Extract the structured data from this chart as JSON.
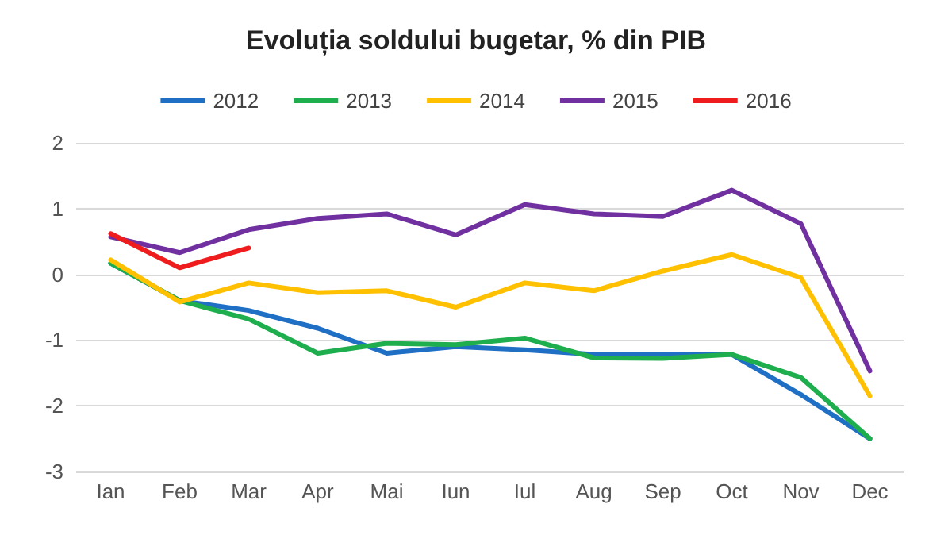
{
  "chart_data": {
    "type": "line",
    "title": "Evoluția soldului bugetar, % din PIB",
    "categories": [
      "Ian",
      "Feb",
      "Mar",
      "Apr",
      "Mai",
      "Iun",
      "Iul",
      "Aug",
      "Sep",
      "Oct",
      "Nov",
      "Dec"
    ],
    "series": [
      {
        "name": "2012",
        "color": "#1f6fc5",
        "values": [
          0.17,
          -0.4,
          -0.55,
          -0.82,
          -1.2,
          -1.1,
          -1.15,
          -1.22,
          -1.22,
          -1.22,
          -1.83,
          -2.5
        ]
      },
      {
        "name": "2013",
        "color": "#1fae4e",
        "values": [
          0.17,
          -0.4,
          -0.68,
          -1.2,
          -1.05,
          -1.07,
          -0.97,
          -1.27,
          -1.28,
          -1.22,
          -1.57,
          -2.5
        ]
      },
      {
        "name": "2014",
        "color": "#ffc000",
        "values": [
          0.22,
          -0.42,
          -0.13,
          -0.28,
          -0.25,
          -0.5,
          -0.13,
          -0.25,
          0.05,
          0.3,
          -0.05,
          -1.85
        ]
      },
      {
        "name": "2015",
        "color": "#7030a0",
        "values": [
          0.57,
          0.33,
          0.68,
          0.85,
          0.92,
          0.6,
          1.06,
          0.92,
          0.88,
          1.28,
          0.77,
          -1.47
        ]
      },
      {
        "name": "2016",
        "color": "#ee1c1c",
        "values": [
          0.62,
          0.1,
          0.4,
          null,
          null,
          null,
          null,
          null,
          null,
          null,
          null,
          null
        ]
      }
    ],
    "ylim": [
      -3,
      2
    ],
    "yticks": [
      -3,
      -2,
      -1,
      0,
      1,
      2
    ],
    "grid": "y",
    "legend": "top",
    "marker": "none",
    "line_style": "solid"
  }
}
